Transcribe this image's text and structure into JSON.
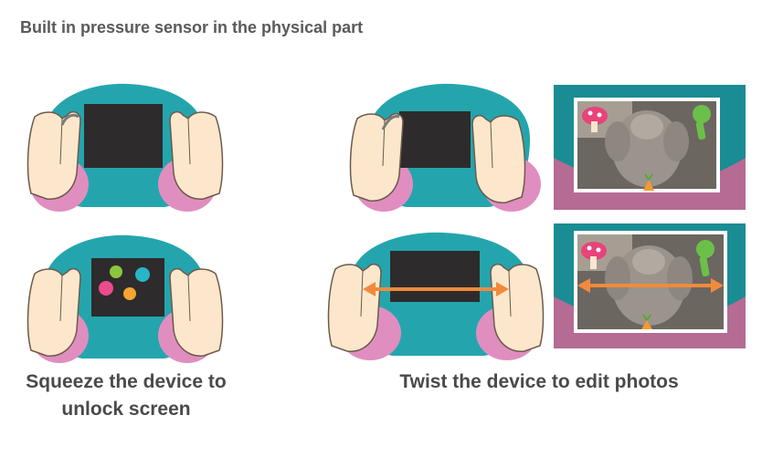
{
  "title": "Built in pressure sensor in the physical part",
  "captions": {
    "squeeze": "Squeeze the device to unlock screen",
    "twist": "Twist the device to edit photos"
  },
  "colors": {
    "device_body": "#24a5ad",
    "grips": "#e08ec0",
    "screen": "#2e2b2c",
    "skin": "#fce7cc",
    "skin_outline": "#6b5a4b",
    "arrow": "#f28a3c",
    "photo_frame": "#1a8c93",
    "photo_frame_bottom": "#b56b94",
    "unlock_dots": [
      "#8cc63f",
      "#27b5c7",
      "#ec4b8b",
      "#f7a431"
    ]
  },
  "icons": [
    "hand-icon",
    "twist-arrow-icon",
    "teddy-bear-photo",
    "mushroom-sticker-icon",
    "microphone-sticker-icon",
    "carrot-sticker-icon"
  ]
}
